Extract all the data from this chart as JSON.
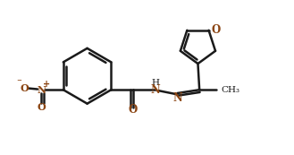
{
  "background_color": "#ffffff",
  "line_color": "#1a1a1a",
  "heteroatom_color": "#8B4513",
  "bond_width": 1.8,
  "figsize": [
    3.29,
    1.73
  ],
  "dpi": 100,
  "xlim": [
    0,
    9.5
  ],
  "ylim": [
    0,
    5.0
  ]
}
